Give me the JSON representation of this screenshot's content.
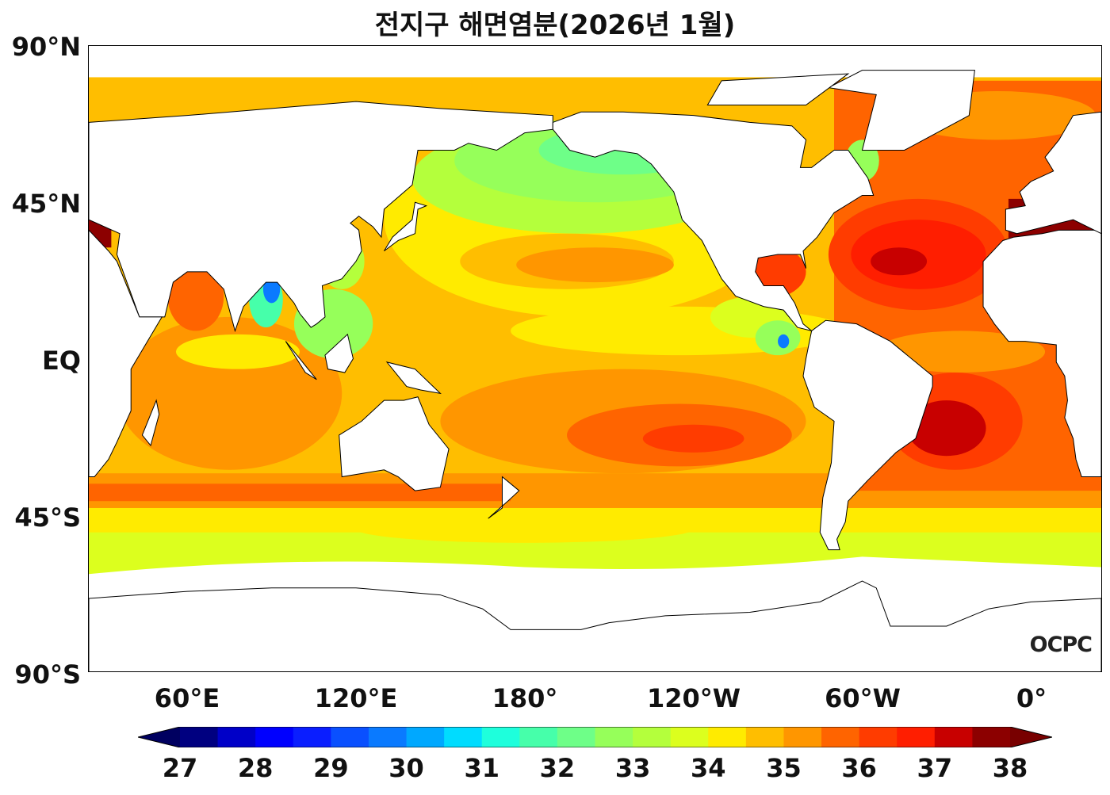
{
  "title": "전지구 해면염분(2026년 1월)",
  "axes": {
    "lat_labels": [
      "90°N",
      "45°N",
      "EQ",
      "45°S",
      "90°S"
    ],
    "lon_labels": [
      "60°E",
      "120°E",
      "180°",
      "120°W",
      "60°W",
      "0°"
    ]
  },
  "logo": "OCPC",
  "colorbar": {
    "min": 27,
    "max": 38,
    "step": 0.5,
    "extend": "both",
    "tick_labels": [
      "27",
      "28",
      "29",
      "30",
      "31",
      "32",
      "33",
      "34",
      "35",
      "36",
      "37",
      "38"
    ],
    "colors": [
      "#000080",
      "#0000c8",
      "#0000ff",
      "#0a1eff",
      "#0a50ff",
      "#0a7aff",
      "#00a8ff",
      "#00dcff",
      "#1effdc",
      "#46ffaa",
      "#6eff88",
      "#96ff5a",
      "#b4ff3c",
      "#dcff1e",
      "#ffeb00",
      "#ffbe00",
      "#ff9600",
      "#ff6400",
      "#ff3c00",
      "#ff1e00",
      "#c80000",
      "#8c0000"
    ],
    "under_color": "#000060",
    "over_color": "#780000"
  }
}
